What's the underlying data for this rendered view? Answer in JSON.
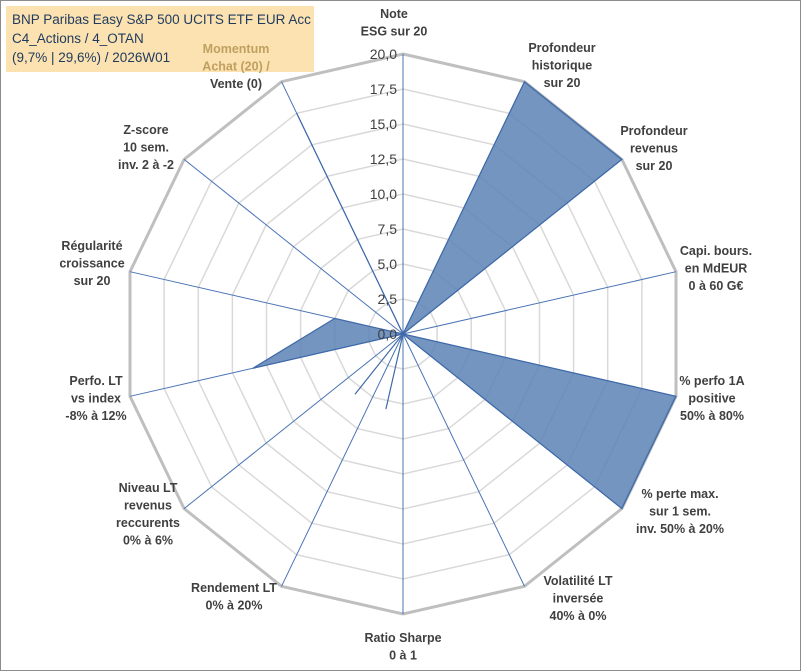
{
  "title": {
    "line1": "BNP Paribas Easy S&P 500 UCITS ETF EUR Acc",
    "line2": "C4_Actions / 4_OTAN",
    "line3": "(9,7% | 29,6%) / 2026W01"
  },
  "chart_data": {
    "type": "radar",
    "range": [
      0,
      20
    ],
    "ticks": [
      "0,0",
      "2,5",
      "5,0",
      "7,5",
      "10,0",
      "12,5",
      "15,0",
      "17,5",
      "20,0"
    ],
    "grid": true,
    "series_color": "#5b82b5",
    "axes": [
      {
        "label_lines": [
          "Note",
          "ESG sur 20"
        ],
        "value": 0
      },
      {
        "label_lines": [
          "Profondeur",
          "historique",
          "sur 20"
        ],
        "value": 20
      },
      {
        "label_lines": [
          "Profondeur",
          "revenus",
          "sur 20"
        ],
        "value": 20
      },
      {
        "label_lines": [
          "Capi. bours.",
          "en MdEUR",
          "0 à 60 G€"
        ],
        "value": 0
      },
      {
        "label_lines": [
          "% perfo 1A",
          "positive",
          "50% à 80%"
        ],
        "value": 20
      },
      {
        "label_lines": [
          "% perte max.",
          "sur 1 sem.",
          "inv. 50% à 20%"
        ],
        "value": 20
      },
      {
        "label_lines": [
          "Volatilité LT",
          "inversée",
          "40% à 0%"
        ],
        "value": 0
      },
      {
        "label_lines": [
          "Ratio Sharpe",
          "0 à 1"
        ],
        "value": 0
      },
      {
        "label_lines": [
          "Rendement LT",
          "0% à 20%"
        ],
        "value": 0
      },
      {
        "label_lines": [
          "Niveau LT",
          "revenus",
          "reccurents",
          "0% à 6%"
        ],
        "value": 0
      },
      {
        "label_lines": [
          "Perfo. LT",
          "vs index",
          "-8% à 12%"
        ],
        "value": 11
      },
      {
        "label_lines": [
          "Régularité",
          "croissance",
          "sur 20"
        ],
        "value": 5
      },
      {
        "label_lines": [
          "Z-score",
          "10 sem.",
          "inv. 2 à -2"
        ],
        "value": 0
      },
      {
        "label_lines": [
          "Momentum",
          "Achat (20) /",
          "Vente (0)"
        ],
        "value": 17.5
      }
    ],
    "extra_points": [
      {
        "between": [
          7,
          8
        ],
        "value": 5.5
      },
      {
        "between": [
          8,
          9
        ],
        "value": 5.5
      }
    ]
  }
}
